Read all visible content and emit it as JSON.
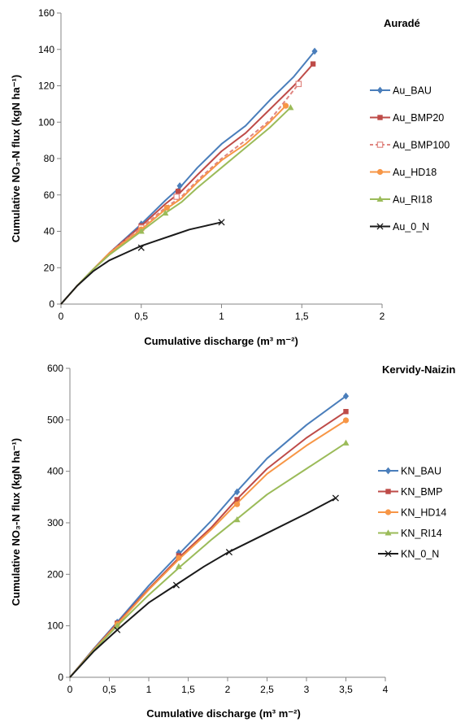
{
  "chart_data": [
    {
      "type": "line",
      "title": "Auradé",
      "xlabel": "Cumulative discharge (m³ m⁻²)",
      "ylabel": "Cumulative NO₃-N  flux (kgN ha⁻¹)",
      "xlim": [
        0,
        2
      ],
      "ylim": [
        0,
        160
      ],
      "xticks": [
        "0",
        "0,5",
        "1",
        "1,5",
        "2"
      ],
      "yticks": [
        "0",
        "20",
        "40",
        "60",
        "80",
        "100",
        "120",
        "140",
        "160"
      ],
      "grid": false,
      "legend_position": "right",
      "series": [
        {
          "name": "Au_BAU",
          "color": "#4a7ebb",
          "marker": "diamond",
          "dash": false,
          "x": [
            0,
            0.1,
            0.2,
            0.3,
            0.5,
            0.65,
            0.75,
            0.85,
            1.0,
            1.15,
            1.3,
            1.45,
            1.58
          ],
          "y": [
            0,
            10,
            19,
            28,
            44,
            57,
            65,
            75,
            88,
            98,
            112,
            125,
            139
          ],
          "markers_x": [
            0.5,
            0.74,
            1.58
          ],
          "markers_y": [
            44,
            65,
            139
          ]
        },
        {
          "name": "Au_BMP20",
          "color": "#be4b48",
          "marker": "square",
          "dash": false,
          "x": [
            0,
            0.1,
            0.2,
            0.3,
            0.5,
            0.65,
            0.75,
            0.85,
            1.0,
            1.15,
            1.3,
            1.45,
            1.57
          ],
          "y": [
            0,
            10,
            19,
            28,
            43,
            55,
            62,
            71,
            84,
            94,
            107,
            120,
            132
          ],
          "markers_x": [
            0.5,
            0.73,
            1.57
          ],
          "markers_y": [
            43,
            62,
            132
          ]
        },
        {
          "name": "Au_BMP100",
          "color": "#e08580",
          "marker": "square-open",
          "dash": true,
          "x": [
            0,
            0.1,
            0.2,
            0.3,
            0.5,
            0.65,
            0.75,
            0.85,
            1.0,
            1.15,
            1.3,
            1.48
          ],
          "y": [
            0,
            10,
            19,
            28,
            42,
            53,
            59,
            68,
            80,
            90,
            101,
            121
          ],
          "markers_x": [
            0.5,
            0.72,
            1.48
          ],
          "markers_y": [
            42,
            59,
            121
          ]
        },
        {
          "name": "Au_HD18",
          "color": "#f79646",
          "marker": "circle",
          "dash": false,
          "x": [
            0,
            0.1,
            0.2,
            0.3,
            0.5,
            0.65,
            0.75,
            0.85,
            1.0,
            1.15,
            1.3,
            1.4
          ],
          "y": [
            0,
            10,
            19,
            28,
            41,
            52,
            58,
            67,
            79,
            88,
            100,
            109
          ],
          "markers_x": [
            0.5,
            0.66,
            1.4
          ],
          "markers_y": [
            41,
            53,
            109
          ]
        },
        {
          "name": "Au_RI18",
          "color": "#9bbb59",
          "marker": "triangle",
          "dash": false,
          "x": [
            0,
            0.1,
            0.2,
            0.3,
            0.5,
            0.65,
            0.75,
            0.85,
            1.0,
            1.15,
            1.3,
            1.43
          ],
          "y": [
            0,
            10,
            19,
            27,
            40,
            50,
            56,
            64,
            75,
            86,
            97,
            108
          ],
          "markers_x": [
            0.5,
            0.65,
            1.43
          ],
          "markers_y": [
            40,
            50,
            108
          ]
        },
        {
          "name": "Au_0_N",
          "color": "#1a1a1a",
          "marker": "x",
          "dash": false,
          "x": [
            0,
            0.1,
            0.2,
            0.3,
            0.4,
            0.5,
            0.6,
            0.7,
            0.8,
            0.9,
            1.0
          ],
          "y": [
            0,
            10,
            18,
            24,
            28,
            32,
            35,
            38,
            41,
            43,
            45
          ],
          "markers_x": [
            0.5,
            1.0
          ],
          "markers_y": [
            31,
            45
          ]
        }
      ]
    },
    {
      "type": "line",
      "title": "Kervidy-Naizin",
      "xlabel": "Cumulative discharge (m³ m⁻²)",
      "ylabel": "Cumulative NO₃-N  flux (kgN ha⁻¹)",
      "xlim": [
        0,
        4
      ],
      "ylim": [
        0,
        600
      ],
      "xticks": [
        "0",
        "0,5",
        "1",
        "1,5",
        "2",
        "2,5",
        "3",
        "3,5",
        "4"
      ],
      "yticks": [
        "0",
        "100",
        "200",
        "300",
        "400",
        "500",
        "600"
      ],
      "grid": false,
      "legend_position": "right",
      "series": [
        {
          "name": "KN_BAU",
          "color": "#4a7ebb",
          "marker": "diamond",
          "dash": false,
          "x": [
            0,
            0.3,
            0.6,
            1.0,
            1.4,
            1.8,
            2.1,
            2.5,
            3.0,
            3.5
          ],
          "y": [
            0,
            55,
            107,
            178,
            242,
            305,
            358,
            425,
            490,
            546
          ],
          "markers_x": [
            0.6,
            1.38,
            2.12,
            3.5
          ],
          "markers_y": [
            107,
            242,
            360,
            546
          ]
        },
        {
          "name": "KN_BMP",
          "color": "#be4b48",
          "marker": "square",
          "dash": false,
          "x": [
            0,
            0.3,
            0.6,
            1.0,
            1.4,
            1.8,
            2.1,
            2.5,
            3.0,
            3.5
          ],
          "y": [
            0,
            54,
            105,
            172,
            235,
            292,
            343,
            405,
            465,
            516
          ],
          "markers_x": [
            0.6,
            1.38,
            2.12,
            3.5
          ],
          "markers_y": [
            105,
            236,
            345,
            516
          ]
        },
        {
          "name": "KN_HD14",
          "color": "#f79646",
          "marker": "circle",
          "dash": false,
          "x": [
            0,
            0.3,
            0.6,
            1.0,
            1.4,
            1.8,
            2.1,
            2.5,
            3.0,
            3.5
          ],
          "y": [
            0,
            53,
            103,
            170,
            232,
            288,
            335,
            395,
            450,
            499
          ],
          "markers_x": [
            0.6,
            1.38,
            2.12,
            3.5
          ],
          "markers_y": [
            103,
            232,
            336,
            499
          ]
        },
        {
          "name": "KN_RI14",
          "color": "#9bbb59",
          "marker": "triangle",
          "dash": false,
          "x": [
            0,
            0.3,
            0.6,
            1.0,
            1.4,
            1.8,
            2.1,
            2.5,
            3.0,
            3.5
          ],
          "y": [
            0,
            52,
            100,
            160,
            215,
            268,
            305,
            355,
            405,
            455
          ],
          "markers_x": [
            0.6,
            1.38,
            2.12,
            3.5
          ],
          "markers_y": [
            100,
            215,
            306,
            455
          ]
        },
        {
          "name": "KN_0_N",
          "color": "#1a1a1a",
          "marker": "x",
          "dash": false,
          "x": [
            0,
            0.3,
            0.6,
            1.0,
            1.35,
            1.7,
            2.0,
            2.5,
            3.0,
            3.37
          ],
          "y": [
            0,
            50,
            92,
            145,
            180,
            215,
            242,
            280,
            318,
            348
          ],
          "markers_x": [
            0.6,
            1.35,
            2.02,
            3.37
          ],
          "markers_y": [
            92,
            179,
            243,
            348
          ]
        }
      ]
    }
  ]
}
